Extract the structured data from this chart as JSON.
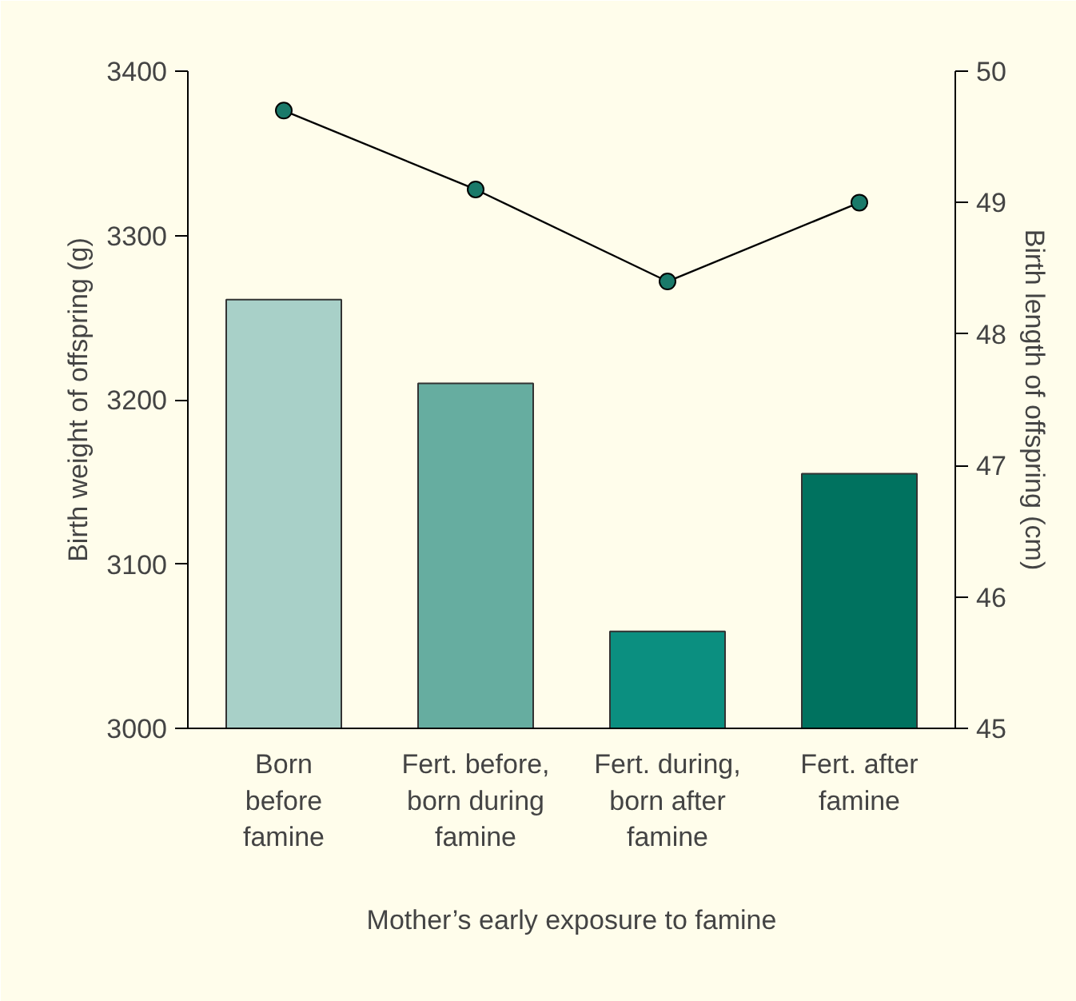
{
  "chart_data": {
    "type": "bar",
    "xlabel": "Mother’s early exposure to famine",
    "ylabel": "Birth weight of offspring (g)",
    "y2label": "Birth length of offspring (cm)",
    "categories": [
      "Born\nbefore\nfamine",
      "Fert. before,\nborn during\nfamine",
      "Fert. during,\nborn after\nfamine",
      "Fert. after\nfamine"
    ],
    "series": [
      {
        "colors": [
          "#a8d0c8",
          "#66ada0",
          "#0b8f80",
          "#00725f"
        ],
        "values": [
          3261,
          3210,
          3059,
          3155
        ]
      },
      {
        "type": "line",
        "axis": "y2",
        "color": "#1a7a6a",
        "values": [
          49.7,
          49.1,
          48.4,
          49.0
        ]
      }
    ],
    "marker": "circle",
    "ylim": [
      3000,
      3400
    ],
    "yticks": [
      3000,
      3100,
      3200,
      3300,
      3400
    ],
    "y2lim": [
      45,
      50
    ],
    "y2ticks": [
      45,
      46,
      47,
      48,
      49,
      50
    ]
  }
}
